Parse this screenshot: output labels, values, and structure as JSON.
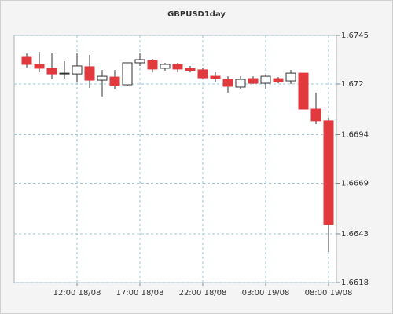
{
  "chart_data": {
    "type": "candlestick",
    "title": "GBPUSD1day",
    "categories": [
      null,
      null,
      null,
      null,
      "12:00 18/08",
      null,
      null,
      null,
      null,
      "17:00 18/08",
      null,
      null,
      null,
      null,
      "22:00 18/08",
      null,
      null,
      null,
      null,
      "03:00 19/08",
      null,
      null,
      null,
      null,
      "08:00 19/08"
    ],
    "open": [
      1.67341,
      1.67301,
      1.67281,
      1.67252,
      1.67252,
      1.67289,
      1.6722,
      1.67236,
      1.67196,
      1.67309,
      1.67321,
      1.67281,
      1.67301,
      1.67281,
      1.67273,
      1.6724,
      1.67224,
      1.67184,
      1.67228,
      1.67204,
      1.67228,
      1.67216,
      1.67256,
      1.67071,
      1.67011
    ],
    "high": [
      1.67357,
      1.67365,
      1.67357,
      1.67317,
      1.67357,
      1.67349,
      1.67272,
      1.67272,
      1.67309,
      1.67357,
      1.67329,
      1.67309,
      1.67309,
      1.67293,
      1.67285,
      1.6726,
      1.6724,
      1.6724,
      1.6724,
      1.67248,
      1.67236,
      1.67272,
      1.67256,
      1.67156,
      1.67027
    ],
    "low": [
      1.67285,
      1.6726,
      1.67224,
      1.67228,
      1.67212,
      1.6718,
      1.67136,
      1.67172,
      1.67188,
      1.67293,
      1.6726,
      1.67268,
      1.6726,
      1.6726,
      1.67228,
      1.67212,
      1.67156,
      1.67176,
      1.672,
      1.67176,
      1.67204,
      1.672,
      1.67071,
      1.66994,
      1.66337
    ],
    "close": [
      1.67301,
      1.67281,
      1.67252,
      1.67256,
      1.67293,
      1.6722,
      1.6724,
      1.67192,
      1.67309,
      1.67325,
      1.67277,
      1.67301,
      1.67277,
      1.67269,
      1.67232,
      1.67228,
      1.67188,
      1.67224,
      1.67204,
      1.6724,
      1.67212,
      1.67256,
      1.67071,
      1.67011,
      1.66479
    ],
    "up_color": "#ffffff",
    "down_color": "#e0393e",
    "ylim": [
      1.6618,
      1.6745
    ],
    "yticks": [
      1.6618,
      1.6643,
      1.6669,
      1.6694,
      1.672,
      1.6745
    ],
    "grid": true
  }
}
